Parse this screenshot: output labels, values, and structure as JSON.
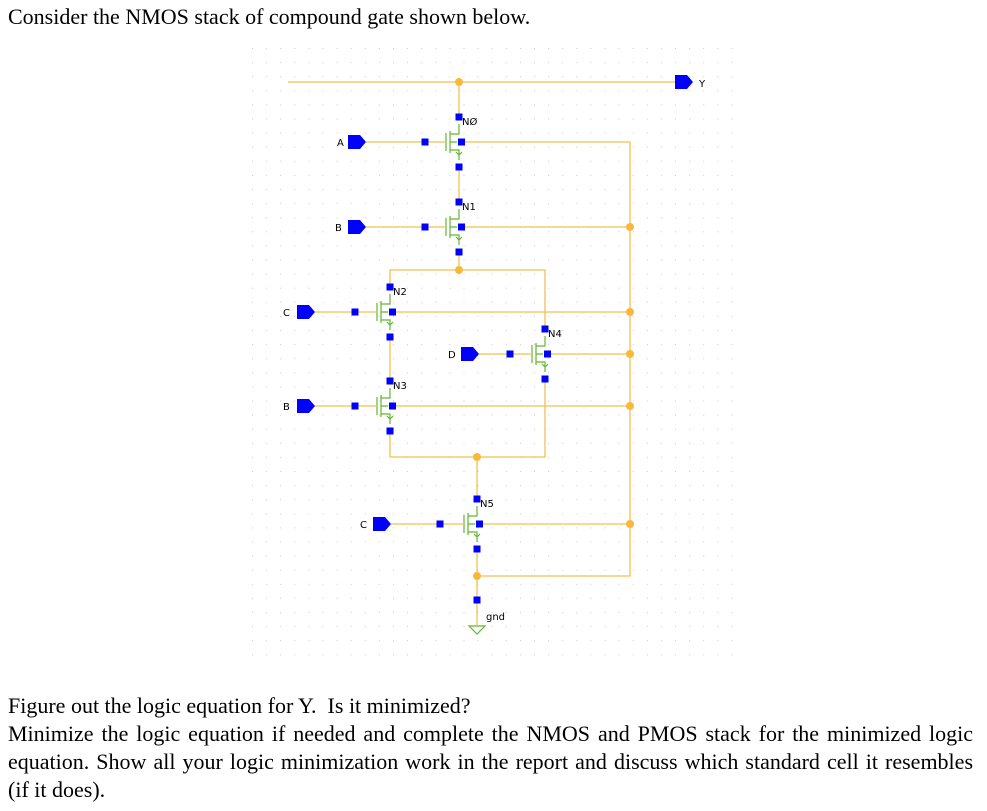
{
  "header": {
    "text": "Consider the NMOS stack of compound gate shown below."
  },
  "schematic": {
    "output": "Y",
    "inputs": [
      "A",
      "B",
      "C",
      "B",
      "D",
      "C"
    ],
    "transistors": [
      "NØ",
      "N1",
      "N2",
      "N3",
      "N4",
      "N5"
    ],
    "ground": "gnd"
  },
  "paragraphs": [
    "Figure out the logic equation for Y.  Is it minimized?",
    "Minimize the logic equation if needed and complete the NMOS and PMOS stack for the minimized logic equation. Show all your logic minimization work in the report and discuss which standard cell it resembles (if it does)."
  ]
}
